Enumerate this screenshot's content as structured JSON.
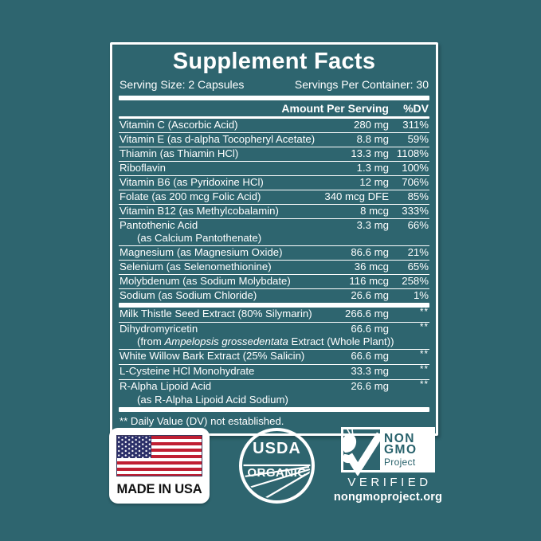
{
  "colors": {
    "teal_background": "#2e656f",
    "teal_dark_text": "#27616b",
    "flag_red": "#c01f33",
    "flag_navy": "#2b2f69",
    "panel_border": "#ffffff"
  },
  "panel": {
    "title": "Supplement Facts",
    "serving_size": "Serving Size: 2 Capsules",
    "servings_per_container": "Servings Per Container: 30",
    "col_amount": "Amount Per Serving",
    "col_dv": "%DV",
    "sections": [
      {
        "rows": [
          {
            "name": "Vitamin C (Ascorbic Acid)",
            "amount": "280 mg",
            "dv": "311%"
          },
          {
            "name": "Vitamin E (as d-alpha Tocopheryl Acetate)",
            "amount": "8.8 mg",
            "dv": "59%"
          },
          {
            "name": "Thiamin (as Thiamin HCl)",
            "amount": "13.3 mg",
            "dv": "1108%"
          },
          {
            "name": "Riboflavin",
            "amount": "1.3 mg",
            "dv": "100%"
          },
          {
            "name": "Vitamin B6 (as Pyridoxine HCl)",
            "amount": "12 mg",
            "dv": "706%"
          },
          {
            "name": "Folate (as 200 mcg Folic Acid)",
            "amount": "340 mcg DFE",
            "dv": "85%"
          },
          {
            "name": "Vitamin B12 (as Methylcobalamin)",
            "amount": "8 mcg",
            "dv": "333%"
          },
          {
            "name": "Pantothenic Acid",
            "amount": "3.3 mg",
            "dv": "66%",
            "sub": [
              {
                "text": "(as Calcium Pantothenate)",
                "italic": false
              }
            ]
          },
          {
            "name": "Magnesium (as Magnesium Oxide)",
            "amount": "86.6 mg",
            "dv": "21%"
          },
          {
            "name": "Selenium (as Selenomethionine)",
            "amount": "36 mcg",
            "dv": "65%"
          },
          {
            "name": "Molybdenum (as Sodium Molybdate)",
            "amount": "116 mcg",
            "dv": "258%"
          },
          {
            "name": "Sodium (as Sodium Chloride)",
            "amount": "26.6 mg",
            "dv": "1%"
          }
        ]
      },
      {
        "rows": [
          {
            "name": "Milk Thistle Seed Extract (80% Silymarin)",
            "amount": "266.6 mg",
            "dv": "**"
          },
          {
            "name": "Dihydromyricetin",
            "amount": "66.6 mg",
            "dv": "**",
            "sub": [
              {
                "text": "(from ",
                "italic": false
              },
              {
                "text": "Ampelopsis grossedentata",
                "italic": true
              },
              {
                "text": " Extract (Whole Plant))",
                "italic": false
              }
            ]
          },
          {
            "name": "White Willow Bark Extract (25% Salicin)",
            "amount": "66.6 mg",
            "dv": "**"
          },
          {
            "name": "L-Cysteine HCl Monohydrate",
            "amount": "33.3 mg",
            "dv": "**"
          },
          {
            "name": "R-Alpha Lipoid Acid",
            "amount": "26.6 mg",
            "dv": "**",
            "sub": [
              {
                "text": "(as R-Alpha Lipoid Acid Sodium)",
                "italic": false
              }
            ]
          }
        ]
      }
    ],
    "footnote": "** Daily Value (DV) not established."
  },
  "badges": {
    "made_in_usa": {
      "icon": "us-flag-icon",
      "label": "MADE IN USA"
    },
    "usda": {
      "icon": "usda-field-icon",
      "word1": "USDA",
      "word2": "ORGANIC"
    },
    "non_gmo": {
      "icon": "butterfly-checkmark-icon",
      "word1": "NON",
      "word2": "GMO",
      "word3": "Project",
      "verified": "VERIFIED",
      "url": "nongmoproject.org"
    }
  }
}
